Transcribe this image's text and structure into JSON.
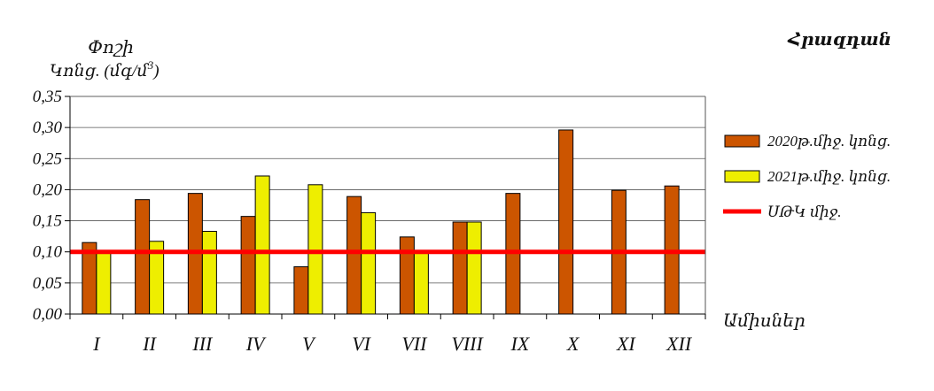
{
  "chart_data": {
    "type": "bar",
    "title": "Հրազդան",
    "ylabel_line1": "Փոշի",
    "ylabel_line2": "Կոնց. (մգ/մ",
    "ylabel_sup": "3",
    "ylabel_close": ")",
    "xlabel": "Ամիսներ",
    "ylim": [
      0,
      0.35
    ],
    "yticks": [
      "0,00",
      "0,05",
      "0,10",
      "0,15",
      "0,20",
      "0,25",
      "0,30",
      "0,35"
    ],
    "categories": [
      "I",
      "II",
      "III",
      "IV",
      "V",
      "VI",
      "VII",
      "VIII",
      "IX",
      "X",
      "XI",
      "XII"
    ],
    "series": [
      {
        "name": "2020թ.միջ. կոնց.",
        "color": "#cc5500",
        "values": [
          0.115,
          0.184,
          0.194,
          0.157,
          0.076,
          0.189,
          0.124,
          0.148,
          0.194,
          0.296,
          0.199,
          0.206
        ]
      },
      {
        "name": "2021թ.միջ. կոնց.",
        "color": "#eeee00",
        "values": [
          0.1,
          0.117,
          0.133,
          0.222,
          0.208,
          0.163,
          0.1,
          0.148,
          null,
          null,
          null,
          null
        ]
      }
    ],
    "reference_line": {
      "name": "ՍԹԿ միջ.",
      "value": 0.1,
      "color": "#ff0000"
    },
    "grid": "horizontal",
    "legend_position": "right"
  }
}
